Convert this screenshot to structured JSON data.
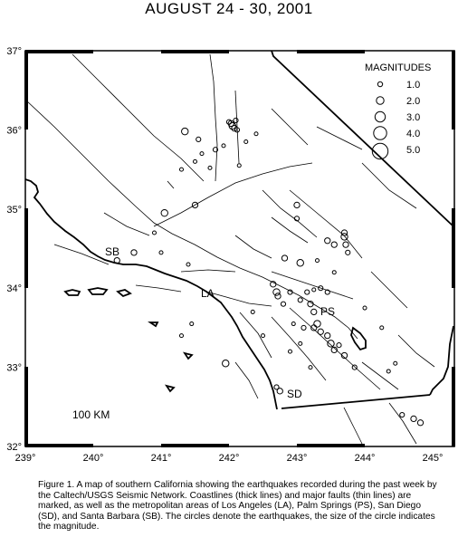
{
  "title": "AUGUST 24 - 30, 2001",
  "lon_ticks": [
    "239°",
    "240°",
    "241°",
    "242°",
    "243°",
    "244°",
    "245°"
  ],
  "lat_ticks": [
    "37°",
    "36°",
    "35°",
    "34°",
    "33°",
    "32°"
  ],
  "legend": {
    "title": "MAGNITUDES",
    "items": [
      {
        "label": "1.0",
        "mag": 1.0
      },
      {
        "label": "2.0",
        "mag": 2.0
      },
      {
        "label": "3.0",
        "mag": 3.0
      },
      {
        "label": "4.0",
        "mag": 4.0
      },
      {
        "label": "5.0",
        "mag": 5.0
      }
    ]
  },
  "cities": {
    "sb": "SB",
    "la": "LA",
    "ps": "PS",
    "sd": "SD"
  },
  "scale_label": "100 KM",
  "caption": "Figure 1. A map of southern California showing the earthquakes recorded during the past week by the Caltech/USGS Seismic Network. Coastlines (thick lines) and major faults (thin lines) are marked, as well as the metropolitan areas of Los Angeles (LA), Palm Springs (PS), San Diego (SD), and Santa Barbara (SB). The circles denote the earthquakes, the size of the circle indicates the magnitude.",
  "earthquakes": [
    {
      "lon": 242.03,
      "lat": 36.08,
      "mag": 2.0
    },
    {
      "lon": 242.05,
      "lat": 36.05,
      "mag": 2.5
    },
    {
      "lon": 242.08,
      "lat": 36.02,
      "mag": 2.0
    },
    {
      "lon": 242.0,
      "lat": 36.1,
      "mag": 1.5
    },
    {
      "lon": 242.1,
      "lat": 36.12,
      "mag": 1.5
    },
    {
      "lon": 242.12,
      "lat": 36.0,
      "mag": 1.5
    },
    {
      "lon": 241.35,
      "lat": 35.98,
      "mag": 2.5
    },
    {
      "lon": 241.55,
      "lat": 35.88,
      "mag": 1.5
    },
    {
      "lon": 241.8,
      "lat": 35.75,
      "mag": 1.5
    },
    {
      "lon": 241.92,
      "lat": 35.8,
      "mag": 1.0
    },
    {
      "lon": 241.6,
      "lat": 35.7,
      "mag": 1.0
    },
    {
      "lon": 241.5,
      "lat": 35.6,
      "mag": 1.0
    },
    {
      "lon": 242.25,
      "lat": 35.85,
      "mag": 1.0
    },
    {
      "lon": 242.4,
      "lat": 35.95,
      "mag": 1.0
    },
    {
      "lon": 241.72,
      "lat": 35.52,
      "mag": 1.0
    },
    {
      "lon": 241.3,
      "lat": 35.5,
      "mag": 1.0
    },
    {
      "lon": 242.15,
      "lat": 35.55,
      "mag": 1.0
    },
    {
      "lon": 241.5,
      "lat": 35.05,
      "mag": 2.0
    },
    {
      "lon": 241.05,
      "lat": 34.95,
      "mag": 2.5
    },
    {
      "lon": 243.0,
      "lat": 35.05,
      "mag": 2.0
    },
    {
      "lon": 243.0,
      "lat": 34.88,
      "mag": 1.5
    },
    {
      "lon": 243.45,
      "lat": 34.6,
      "mag": 2.0
    },
    {
      "lon": 243.55,
      "lat": 34.55,
      "mag": 2.0
    },
    {
      "lon": 243.7,
      "lat": 34.65,
      "mag": 2.5
    },
    {
      "lon": 243.72,
      "lat": 34.55,
      "mag": 2.0
    },
    {
      "lon": 243.7,
      "lat": 34.7,
      "mag": 2.0
    },
    {
      "lon": 243.75,
      "lat": 34.45,
      "mag": 1.5
    },
    {
      "lon": 243.3,
      "lat": 34.35,
      "mag": 1.0
    },
    {
      "lon": 243.05,
      "lat": 34.32,
      "mag": 2.5
    },
    {
      "lon": 242.82,
      "lat": 34.38,
      "mag": 2.0
    },
    {
      "lon": 243.55,
      "lat": 34.2,
      "mag": 1.0
    },
    {
      "lon": 240.6,
      "lat": 34.45,
      "mag": 2.0
    },
    {
      "lon": 240.35,
      "lat": 34.35,
      "mag": 2.0
    },
    {
      "lon": 241.0,
      "lat": 34.45,
      "mag": 1.0
    },
    {
      "lon": 240.9,
      "lat": 34.7,
      "mag": 1.0
    },
    {
      "lon": 241.4,
      "lat": 34.3,
      "mag": 1.0
    },
    {
      "lon": 242.65,
      "lat": 34.05,
      "mag": 2.0
    },
    {
      "lon": 242.7,
      "lat": 33.95,
      "mag": 2.5
    },
    {
      "lon": 242.72,
      "lat": 33.9,
      "mag": 2.0
    },
    {
      "lon": 242.8,
      "lat": 33.8,
      "mag": 1.5
    },
    {
      "lon": 242.9,
      "lat": 33.95,
      "mag": 1.5
    },
    {
      "lon": 243.05,
      "lat": 33.85,
      "mag": 1.5
    },
    {
      "lon": 243.15,
      "lat": 33.95,
      "mag": 1.5
    },
    {
      "lon": 243.2,
      "lat": 33.8,
      "mag": 2.0
    },
    {
      "lon": 243.25,
      "lat": 33.7,
      "mag": 2.0
    },
    {
      "lon": 243.3,
      "lat": 33.55,
      "mag": 2.5
    },
    {
      "lon": 243.25,
      "lat": 33.5,
      "mag": 2.0
    },
    {
      "lon": 243.35,
      "lat": 33.45,
      "mag": 2.0
    },
    {
      "lon": 243.45,
      "lat": 33.4,
      "mag": 2.0
    },
    {
      "lon": 243.5,
      "lat": 33.3,
      "mag": 2.5
    },
    {
      "lon": 243.55,
      "lat": 33.22,
      "mag": 2.0
    },
    {
      "lon": 243.62,
      "lat": 33.28,
      "mag": 1.5
    },
    {
      "lon": 243.7,
      "lat": 33.15,
      "mag": 2.0
    },
    {
      "lon": 243.85,
      "lat": 33.0,
      "mag": 1.5
    },
    {
      "lon": 243.1,
      "lat": 33.5,
      "mag": 1.5
    },
    {
      "lon": 243.05,
      "lat": 33.3,
      "mag": 1.0
    },
    {
      "lon": 242.95,
      "lat": 33.55,
      "mag": 1.0
    },
    {
      "lon": 243.2,
      "lat": 33.0,
      "mag": 1.0
    },
    {
      "lon": 242.9,
      "lat": 33.2,
      "mag": 1.0
    },
    {
      "lon": 244.0,
      "lat": 33.75,
      "mag": 1.0
    },
    {
      "lon": 244.25,
      "lat": 33.5,
      "mag": 1.0
    },
    {
      "lon": 244.45,
      "lat": 33.05,
      "mag": 1.0
    },
    {
      "lon": 244.35,
      "lat": 32.95,
      "mag": 1.0
    },
    {
      "lon": 241.95,
      "lat": 33.05,
      "mag": 2.5
    },
    {
      "lon": 241.45,
      "lat": 33.55,
      "mag": 1.0
    },
    {
      "lon": 241.3,
      "lat": 33.4,
      "mag": 1.0
    },
    {
      "lon": 242.35,
      "lat": 33.7,
      "mag": 1.0
    },
    {
      "lon": 242.5,
      "lat": 33.4,
      "mag": 1.0
    },
    {
      "lon": 242.75,
      "lat": 32.7,
      "mag": 2.0
    },
    {
      "lon": 242.7,
      "lat": 32.75,
      "mag": 1.5
    },
    {
      "lon": 244.72,
      "lat": 32.35,
      "mag": 2.0
    },
    {
      "lon": 244.82,
      "lat": 32.3,
      "mag": 2.0
    },
    {
      "lon": 244.55,
      "lat": 32.4,
      "mag": 1.5
    },
    {
      "lon": 243.45,
      "lat": 33.95,
      "mag": 1.5
    },
    {
      "lon": 243.35,
      "lat": 34.0,
      "mag": 1.5
    },
    {
      "lon": 243.25,
      "lat": 33.98,
      "mag": 1.0
    }
  ]
}
